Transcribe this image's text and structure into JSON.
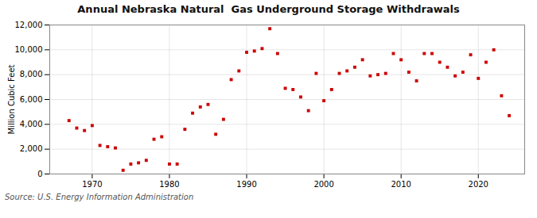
{
  "chart_data": {
    "type": "scatter",
    "title": "Annual Nebraska Natural  Gas Underground Storage Withdrawals",
    "ylabel": "Million Cubic Feet",
    "source": "Source: U.S. Energy Information Administration",
    "color": "#cc0000",
    "marker": "square",
    "grid": true,
    "xlim": [
      1964.5,
      2026
    ],
    "ylim": [
      0,
      12000
    ],
    "xticks": [
      1970,
      1980,
      1990,
      2000,
      2010,
      2020
    ],
    "yticks": [
      0,
      {
        "value": 2000,
        "label": "2,000"
      },
      {
        "value": 4000,
        "label": "4,000"
      },
      {
        "value": 6000,
        "label": "6,000"
      },
      {
        "value": 8000,
        "label": "8,000"
      },
      {
        "value": 10000,
        "label": "10,000"
      },
      {
        "value": 12000,
        "label": "12,000"
      }
    ],
    "x": [
      1967,
      1968,
      1969,
      1970,
      1971,
      1972,
      1973,
      1974,
      1975,
      1976,
      1977,
      1978,
      1979,
      1980,
      1981,
      1982,
      1983,
      1984,
      1985,
      1986,
      1987,
      1988,
      1989,
      1990,
      1991,
      1992,
      1993,
      1994,
      1995,
      1996,
      1997,
      1998,
      1999,
      2000,
      2001,
      2002,
      2003,
      2004,
      2005,
      2006,
      2007,
      2008,
      2009,
      2010,
      2011,
      2012,
      2013,
      2014,
      2015,
      2016,
      2017,
      2018,
      2019,
      2020,
      2021,
      2022,
      2023,
      2024
    ],
    "values": [
      4300,
      3700,
      3500,
      3900,
      2300,
      2200,
      2100,
      300,
      800,
      900,
      1100,
      2800,
      3000,
      800,
      800,
      3600,
      4900,
      5400,
      5600,
      3200,
      4400,
      7600,
      8300,
      9800,
      9900,
      10100,
      11700,
      9700,
      6900,
      6800,
      6200,
      5100,
      8100,
      5900,
      6800,
      8100,
      8300,
      8600,
      9200,
      7900,
      8000,
      8100,
      9700,
      9200,
      8200,
      7500,
      9700,
      9700,
      9000,
      8600,
      7900,
      8200,
      9600,
      7700,
      9000,
      10000,
      6300,
      4700
    ]
  }
}
